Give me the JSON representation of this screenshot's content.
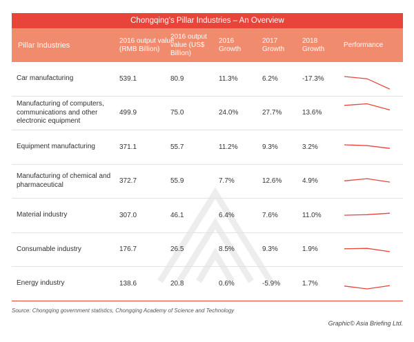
{
  "title": "Chongqing's Pillar Industries – An Overview",
  "headers": {
    "industry": "Pillar Industries",
    "output_rmb": "2016 output value (RMB Billion)",
    "output_usd": "2016 output value (US$ Billion)",
    "growth_2016": "2016 Growth",
    "growth_2017": "2017 Growth",
    "growth_2018": "2018 Growth",
    "performance": "Performance"
  },
  "rows": [
    {
      "name": "Car manufacturing",
      "rmb": "539.1",
      "usd": "80.9",
      "g2016": "11.3%",
      "g2017": "6.2%",
      "g2018": "-17.3%",
      "trend": [
        11.3,
        6.2,
        -17.3
      ]
    },
    {
      "name": "Manufacturing of computers, communications and other electronic equipment",
      "rmb": "499.9",
      "usd": "75.0",
      "g2016": "24.0%",
      "g2017": "27.7%",
      "g2018": "13.6%",
      "trend": [
        24.0,
        27.7,
        13.6
      ]
    },
    {
      "name": "Equipment manufacturing",
      "rmb": "371.1",
      "usd": "55.7",
      "g2016": "11.2%",
      "g2017": "9.3%",
      "g2018": "3.2%",
      "trend": [
        11.2,
        9.3,
        3.2
      ]
    },
    {
      "name": "Manufacturing of chemical and pharmaceutical",
      "rmb": "372.7",
      "usd": "55.9",
      "g2016": "7.7%",
      "g2017": "12.6%",
      "g2018": "4.9%",
      "trend": [
        7.7,
        12.6,
        4.9
      ]
    },
    {
      "name": "Material industry",
      "rmb": "307.0",
      "usd": "46.1",
      "g2016": "6.4%",
      "g2017": "7.6%",
      "g2018": "11.0%",
      "trend": [
        6.4,
        7.6,
        11.0
      ]
    },
    {
      "name": "Consumable industry",
      "rmb": "176.7",
      "usd": "26.5",
      "g2016": "8.5%",
      "g2017": "9.3%",
      "g2018": "1.9%",
      "trend": [
        8.5,
        9.3,
        1.9
      ]
    },
    {
      "name": "Energy industry",
      "rmb": "138.6",
      "usd": "20.8",
      "g2016": "0.6%",
      "g2017": "-5.9%",
      "g2018": "1.7%",
      "trend": [
        0.6,
        -5.9,
        1.7
      ]
    }
  ],
  "colors": {
    "title_bar": "#e8443a",
    "header_row": "#f08b6e",
    "sparkline": "#e8443a"
  },
  "source": "Source: Chongqing government statistics, Chongqing Academy of Science and Technology",
  "credit": "Graphic© Asia Briefing Ltd."
}
